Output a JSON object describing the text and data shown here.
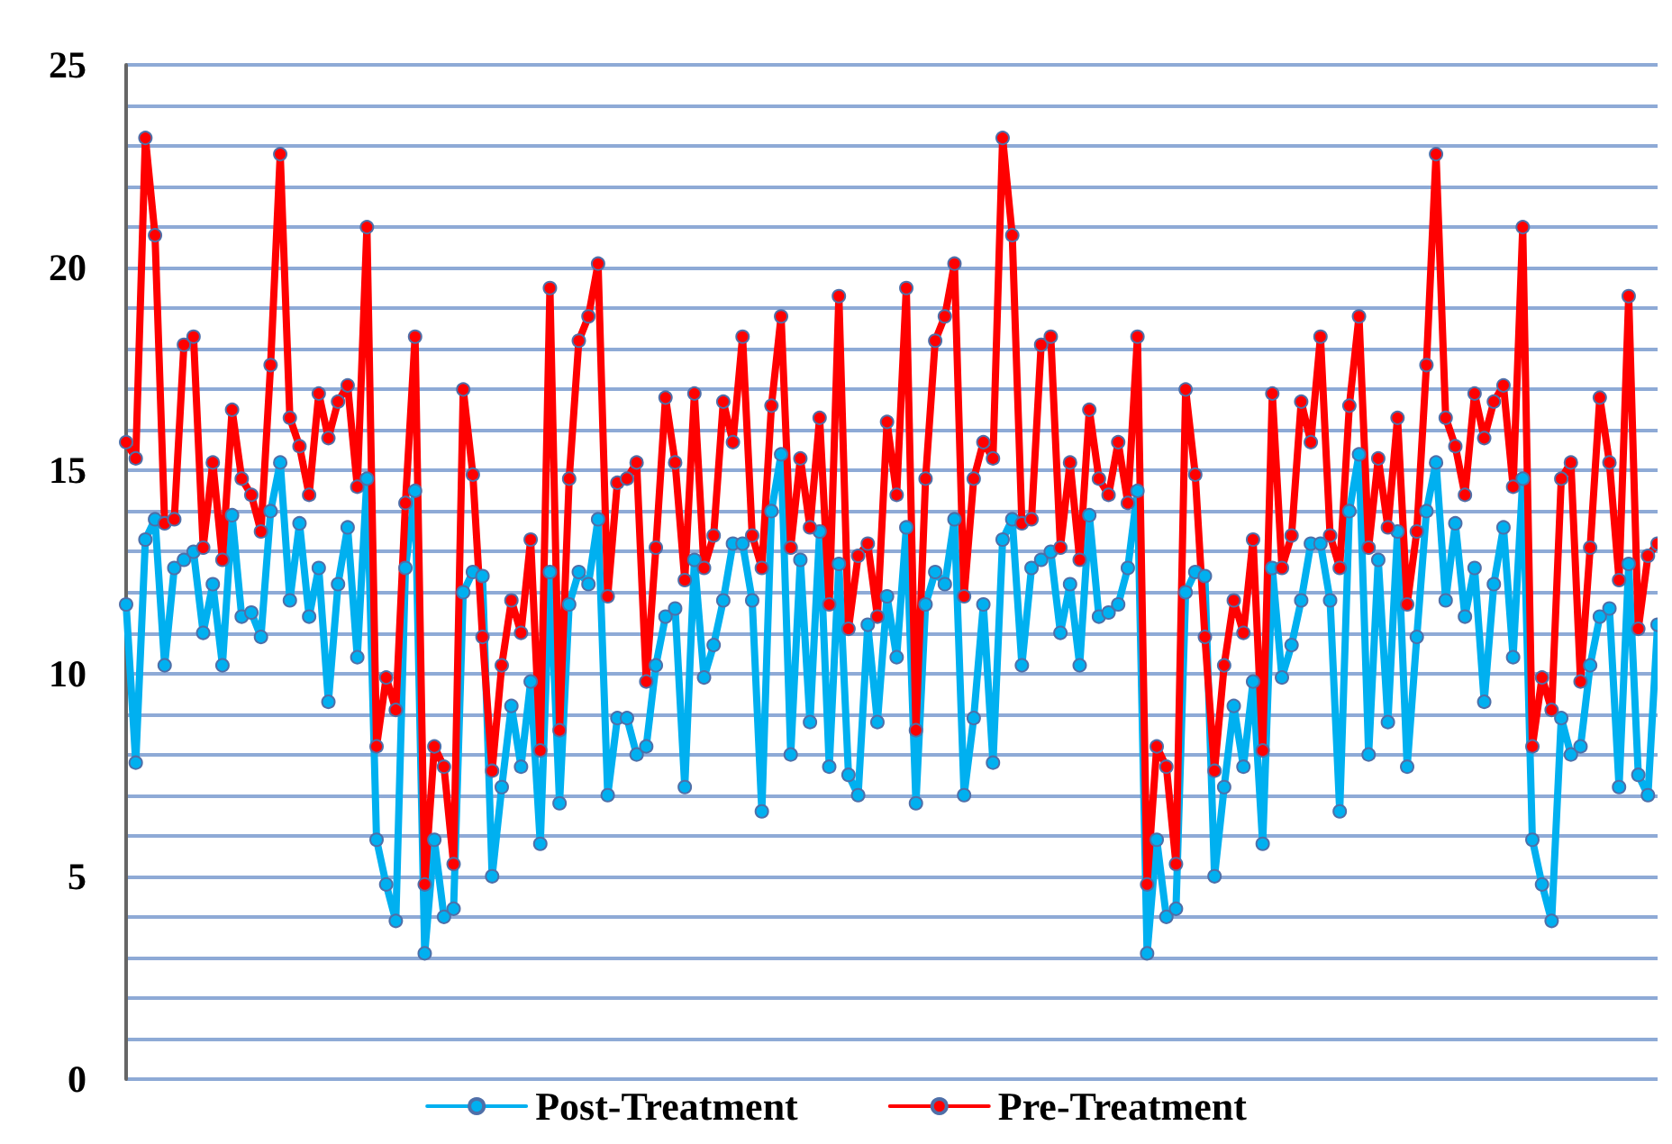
{
  "chart_data": {
    "type": "line",
    "categories": [
      null,
      null,
      null,
      null,
      null,
      null,
      null,
      null,
      null,
      null,
      null,
      null,
      null,
      null,
      null,
      null,
      null,
      null,
      null,
      null,
      null,
      null,
      null,
      null,
      null,
      null,
      null,
      null,
      null,
      null,
      null,
      null,
      null,
      null,
      null,
      null,
      null,
      null,
      null,
      null,
      null,
      null,
      null,
      null,
      null,
      null,
      null,
      null,
      null,
      null,
      null,
      null,
      null,
      null,
      null,
      null,
      null,
      null,
      null,
      null,
      null,
      null,
      null,
      null,
      null,
      null,
      null,
      null,
      null,
      null,
      null,
      null,
      null,
      null,
      null,
      null,
      null,
      null,
      null,
      null,
      null,
      null,
      null,
      null,
      null,
      null,
      null,
      null,
      null,
      null,
      null,
      null,
      null,
      null,
      null,
      null,
      null,
      null,
      null,
      null,
      null,
      null,
      null,
      null,
      null,
      null,
      null,
      null,
      null,
      null,
      null,
      null,
      null,
      null,
      null,
      null,
      null,
      null,
      null,
      null,
      null,
      null,
      null,
      null,
      null,
      null,
      null,
      null,
      null,
      null,
      null,
      null,
      null,
      null,
      null,
      null,
      null,
      null,
      null,
      null,
      null,
      null,
      null,
      null,
      null,
      null,
      null,
      null,
      null,
      null,
      null,
      null,
      null,
      null,
      null,
      null,
      null,
      null,
      null,
      null
    ],
    "series": [
      {
        "name": "Post-Treatment",
        "color": "#00b0f0",
        "values": [
          11.7,
          7.8,
          13.3,
          13.8,
          10.2,
          12.6,
          12.8,
          13.0,
          11.0,
          12.2,
          10.2,
          13.9,
          11.4,
          11.5,
          10.9,
          14.0,
          15.2,
          11.8,
          13.7,
          11.4,
          12.6,
          9.3,
          12.2,
          13.6,
          10.4,
          14.8,
          5.9,
          4.8,
          3.9,
          12.6,
          14.5,
          3.1,
          5.9,
          4.0,
          4.2,
          12.0,
          12.5,
          12.4,
          5.0,
          7.2,
          9.2,
          7.7,
          9.8,
          5.8,
          12.5,
          6.8,
          11.7,
          12.5,
          12.2,
          13.8,
          7.0,
          8.9,
          8.9,
          8.0,
          8.2,
          10.2,
          11.4,
          11.6,
          7.2,
          12.8,
          9.9,
          10.7,
          11.8,
          13.2,
          13.2,
          11.8,
          6.6,
          14.0,
          15.4,
          8.0,
          12.8,
          8.8,
          13.5,
          7.7,
          12.7,
          7.5,
          7.0,
          11.2,
          8.8,
          11.9,
          10.4,
          13.6,
          6.8,
          11.7,
          12.5,
          12.2,
          13.8,
          7.0,
          8.9,
          11.7,
          7.8,
          13.3,
          13.8,
          10.2,
          12.6,
          12.8,
          13.0,
          11.0,
          12.2,
          10.2,
          13.9,
          11.4,
          11.5,
          11.7,
          12.6,
          14.5,
          3.1,
          5.9,
          4.0,
          4.2,
          12.0,
          12.5,
          12.4,
          5.0,
          7.2,
          9.2,
          7.7,
          9.8,
          5.8,
          12.6,
          9.9,
          10.7,
          11.8,
          13.2,
          13.2,
          11.8,
          6.6,
          14.0,
          15.4,
          8.0,
          12.8,
          8.8,
          13.5,
          7.7,
          10.9,
          14.0,
          15.2,
          11.8,
          13.7,
          11.4,
          12.6,
          9.3,
          12.2,
          13.6,
          10.4,
          14.8,
          5.9,
          4.8,
          3.9,
          8.9,
          8.0,
          8.2,
          10.2,
          11.4,
          11.6,
          7.2,
          12.7,
          7.5,
          7.0,
          11.2
        ]
      },
      {
        "name": "Pre-Treatment",
        "color": "#ff0000",
        "values": [
          15.7,
          15.3,
          23.2,
          20.8,
          13.7,
          13.8,
          18.1,
          18.3,
          13.1,
          15.2,
          12.8,
          16.5,
          14.8,
          14.4,
          13.5,
          17.6,
          22.8,
          16.3,
          15.6,
          14.4,
          16.9,
          15.8,
          16.7,
          17.1,
          14.6,
          21.0,
          8.2,
          9.9,
          9.1,
          14.2,
          18.3,
          4.8,
          8.2,
          7.7,
          5.3,
          17.0,
          14.9,
          10.9,
          7.6,
          10.2,
          11.8,
          11.0,
          13.3,
          8.1,
          19.5,
          8.6,
          14.8,
          18.2,
          18.8,
          20.1,
          11.9,
          14.7,
          14.8,
          15.2,
          9.8,
          13.1,
          16.8,
          15.2,
          12.3,
          16.9,
          12.6,
          13.4,
          16.7,
          15.7,
          18.3,
          13.4,
          12.6,
          16.6,
          18.8,
          13.1,
          15.3,
          13.6,
          16.3,
          11.7,
          19.3,
          11.1,
          12.9,
          13.2,
          11.4,
          16.2,
          14.4,
          19.5,
          8.6,
          14.8,
          18.2,
          18.8,
          20.1,
          11.9,
          14.8,
          15.7,
          15.3,
          23.2,
          20.8,
          13.7,
          13.8,
          18.1,
          18.3,
          13.1,
          15.2,
          12.8,
          16.5,
          14.8,
          14.4,
          15.7,
          14.2,
          18.3,
          4.8,
          8.2,
          7.7,
          5.3,
          17.0,
          14.9,
          10.9,
          7.6,
          10.2,
          11.8,
          11.0,
          13.3,
          8.1,
          16.9,
          12.6,
          13.4,
          16.7,
          15.7,
          18.3,
          13.4,
          12.6,
          16.6,
          18.8,
          13.1,
          15.3,
          13.6,
          16.3,
          11.7,
          13.5,
          17.6,
          22.8,
          16.3,
          15.6,
          14.4,
          16.9,
          15.8,
          16.7,
          17.1,
          14.6,
          21.0,
          8.2,
          9.9,
          9.1,
          14.8,
          15.2,
          9.8,
          13.1,
          16.8,
          15.2,
          12.3,
          19.3,
          11.1,
          12.9,
          13.2
        ]
      }
    ],
    "ylim": [
      0,
      25
    ],
    "yticks": [
      0,
      {
        "value": 1,
        "label": null
      },
      {
        "value": 2,
        "label": null
      },
      {
        "value": 3,
        "label": null
      },
      {
        "value": 4,
        "label": null
      },
      5,
      {
        "value": 6,
        "label": null
      },
      {
        "value": 7,
        "label": null
      },
      {
        "value": 8,
        "label": null
      },
      {
        "value": 9,
        "label": null
      },
      10,
      {
        "value": 11,
        "label": null
      },
      {
        "value": 12,
        "label": null
      },
      {
        "value": 13,
        "label": null
      },
      {
        "value": 14,
        "label": null
      },
      15,
      {
        "value": 16,
        "label": null
      },
      {
        "value": 17,
        "label": null
      },
      {
        "value": 18,
        "label": null
      },
      {
        "value": 19,
        "label": null
      },
      20,
      {
        "value": 21,
        "label": null
      },
      {
        "value": 22,
        "label": null
      },
      {
        "value": 23,
        "label": null
      },
      {
        "value": 24,
        "label": null
      },
      25
    ],
    "grid": "y",
    "legend": "bottom",
    "marker": "circle",
    "line_style": "solid",
    "tick_labels": "y"
  }
}
